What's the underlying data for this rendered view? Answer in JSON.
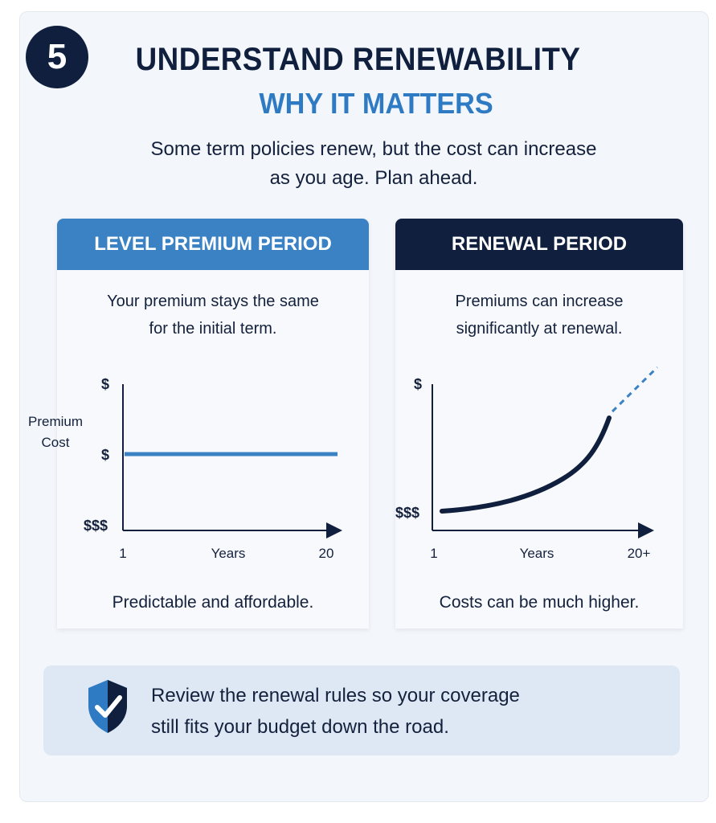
{
  "header": {
    "step_number": "5",
    "title": "UNDERSTAND RENEWABILITY",
    "subtitle": "WHY IT MATTERS",
    "intro_line1": "Some term policies renew, but the cost can increase",
    "intro_line2": "as you age. Plan ahead."
  },
  "panels": [
    {
      "heading": "LEVEL PREMIUM PERIOD",
      "desc_line1": "Your premium stays the same",
      "desc_line2": "for the initial term.",
      "footer": "Predictable and affordable."
    },
    {
      "heading": "RENEWAL PERIOD",
      "desc_line1": "Premiums can increase",
      "desc_line2": "significantly at renewal.",
      "footer": "Costs can be much higher."
    }
  ],
  "y_axis_label_line1": "Premium",
  "y_axis_label_line2": "Cost",
  "chart_data": [
    {
      "type": "line",
      "x_tick_labels": [
        "1",
        "Years",
        "20"
      ],
      "y_tick_labels": [
        "$",
        "$",
        "$$$"
      ],
      "series": [
        {
          "x": [
            1,
            20
          ],
          "y": [
            1,
            1
          ]
        }
      ],
      "trend": "flat",
      "color": "#3b82c4"
    },
    {
      "type": "line",
      "x_tick_labels": [
        "1",
        "Years",
        "20+"
      ],
      "y_tick_labels": [
        "$",
        "$$$"
      ],
      "series": [
        {
          "x": [
            1,
            5,
            10,
            15,
            20,
            24
          ],
          "y": [
            1,
            1.2,
            2,
            3.5,
            5.8,
            8
          ]
        }
      ],
      "trend": "increasing, dashed projection beyond 20",
      "color": "#0f1f3d"
    }
  ],
  "tip": {
    "line1": "Review the renewal rules so your coverage",
    "line2": "still fits your budget down the road."
  },
  "colors": {
    "navy": "#0f1f3d",
    "blue": "#3b82c4",
    "light_blue": "#2e7bc4",
    "tip_background": "#dde8f4"
  },
  "icons": {
    "tip_icon": "shield-check-icon"
  }
}
